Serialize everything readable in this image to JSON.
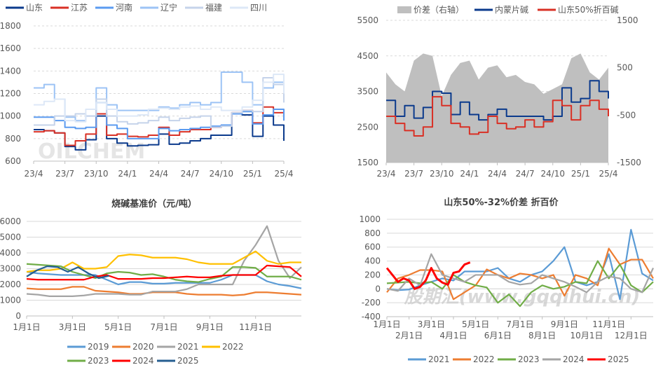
{
  "chart_data": [
    {
      "id": "c1",
      "type": "line",
      "title": "",
      "categories": [
        "23/4",
        "23/5",
        "23/6",
        "23/7",
        "23/8",
        "23/9",
        "23/10",
        "23/11",
        "23/12",
        "24/1",
        "24/2",
        "24/3",
        "24/4",
        "24/5",
        "24/6",
        "24/7",
        "24/8",
        "24/9",
        "24/10",
        "24/11",
        "24/12",
        "25/1",
        "25/2",
        "25/3",
        "25/4"
      ],
      "xtick_labels": [
        "23/4",
        "23/7",
        "23/10",
        "24/1",
        "24/4",
        "24/7",
        "24/10",
        "25/1",
        "25/4"
      ],
      "ylim": [
        600,
        1800
      ],
      "yticks": [
        "600",
        "800",
        "1000",
        "1200",
        "1400",
        "1600",
        "1800"
      ],
      "grid": true,
      "legend": "top",
      "watermark": "OILCHEM",
      "series": [
        {
          "name": "山东",
          "color": "#0b3a8c",
          "values": [
            880,
            870,
            850,
            730,
            700,
            790,
            1000,
            800,
            760,
            735,
            740,
            745,
            840,
            750,
            760,
            780,
            800,
            830,
            830,
            1020,
            1010,
            820,
            1000,
            920,
            780
          ]
        },
        {
          "name": "江苏",
          "color": "#d93025",
          "values": [
            860,
            870,
            850,
            740,
            780,
            840,
            1020,
            830,
            840,
            820,
            815,
            830,
            900,
            830,
            860,
            880,
            880,
            900,
            920,
            1030,
            1050,
            940,
            1080,
            1030,
            960
          ]
        },
        {
          "name": "河南",
          "color": "#5b9bf0",
          "values": [
            990,
            990,
            960,
            900,
            890,
            900,
            1120,
            920,
            890,
            800,
            800,
            800,
            890,
            870,
            880,
            890,
            900,
            910,
            920,
            1020,
            1040,
            930,
            1010,
            1060,
            960
          ]
        },
        {
          "name": "辽宁",
          "color": "#9cc3f5",
          "values": [
            1250,
            1280,
            1150,
            990,
            960,
            1000,
            1250,
            1100,
            1050,
            1050,
            1050,
            1050,
            1080,
            1070,
            1100,
            1120,
            1100,
            1120,
            1390,
            1390,
            1300,
            1100,
            1250,
            1300,
            1200
          ]
        },
        {
          "name": "福建",
          "color": "#c5d3ea",
          "values": [
            920,
            920,
            1000,
            1000,
            1020,
            1000,
            1150,
            1000,
            950,
            930,
            940,
            960,
            990,
            960,
            980,
            990,
            1000,
            900,
            910,
            1030,
            1050,
            1040,
            1340,
            1280,
            1120
          ]
        },
        {
          "name": "四川",
          "color": "#dde8f7",
          "values": [
            1100,
            1130,
            1150,
            960,
            950,
            1060,
            1120,
            1060,
            1000,
            1000,
            1010,
            1060,
            1070,
            1060,
            1080,
            1090,
            1060,
            1080,
            1050,
            1050,
            1080,
            1140,
            1300,
            1370,
            1200
          ]
        }
      ]
    },
    {
      "id": "c2",
      "type": "line",
      "title": "",
      "categories": [
        "23/4",
        "23/5",
        "23/6",
        "23/7",
        "23/8",
        "23/9",
        "23/10",
        "23/11",
        "23/12",
        "24/1",
        "24/2",
        "24/3",
        "24/4",
        "24/5",
        "24/6",
        "24/7",
        "24/8",
        "24/9",
        "24/10",
        "24/11",
        "24/12",
        "25/1",
        "25/2",
        "25/3",
        "25/4"
      ],
      "xtick_labels": [
        "23/4",
        "23/7",
        "23/10",
        "24/1",
        "24/4",
        "24/7",
        "24/10",
        "25/1",
        "25/4"
      ],
      "ylim": [
        1500,
        5500
      ],
      "yticks": [
        "1500",
        "2500",
        "3500",
        "4500",
        "5500"
      ],
      "ylim_right": [
        -1500,
        1500
      ],
      "yticks_right": [
        "-1500",
        "-500",
        "500",
        "1500"
      ],
      "legend": "top",
      "watermark": "OILCHEM",
      "area_series": {
        "name": "价差（右轴）",
        "color": "#bfbfbf",
        "axis": "right",
        "values": [
          400,
          150,
          0,
          650,
          800,
          750,
          -100,
          350,
          600,
          650,
          250,
          500,
          550,
          300,
          350,
          200,
          150,
          -50,
          50,
          150,
          700,
          800,
          400,
          250,
          500
        ]
      },
      "series": [
        {
          "name": "内蒙片碱",
          "color": "#0b3a8c",
          "values": [
            3250,
            2800,
            3100,
            2750,
            3050,
            3500,
            3450,
            2850,
            3200,
            2850,
            2700,
            2850,
            3000,
            2800,
            2800,
            2800,
            2800,
            2700,
            2800,
            3600,
            3200,
            3300,
            3800,
            3500,
            3300
          ]
        },
        {
          "name": "山东50%折百碱",
          "color": "#d93025",
          "values": [
            2800,
            2600,
            2400,
            2250,
            2500,
            3350,
            3100,
            2600,
            2500,
            2300,
            2350,
            2800,
            2600,
            2450,
            2500,
            2700,
            2500,
            2650,
            3250,
            3100,
            2700,
            3100,
            3250,
            3000,
            2800
          ]
        }
      ]
    },
    {
      "id": "c3",
      "type": "line",
      "title": "烧碱基准价（元/吨）",
      "xtick_labels": [
        "1月1日",
        "3月1日",
        "5月1日",
        "7月1日",
        "9月1日",
        "11月1日"
      ],
      "ylim": [
        0,
        6000
      ],
      "yticks": [
        "0",
        "1000",
        "2000",
        "3000",
        "4000",
        "5000",
        "6000"
      ],
      "legend": "bottom",
      "series": [
        {
          "name": "2019",
          "color": "#5b9bd5",
          "values": [
            2800,
            2700,
            2650,
            2600,
            2600,
            2600,
            2600,
            2300,
            2000,
            2150,
            2150,
            2050,
            2050,
            2100,
            2100,
            2100,
            2100,
            2300,
            2600,
            2600,
            2600,
            2200,
            2000,
            1900,
            1750
          ]
        },
        {
          "name": "2020",
          "color": "#ed7d31",
          "values": [
            1750,
            1700,
            1700,
            1700,
            1850,
            1850,
            1600,
            1550,
            1500,
            1400,
            1400,
            1500,
            1500,
            1500,
            1400,
            1350,
            1350,
            1350,
            1300,
            1350,
            1500,
            1500,
            1450,
            1400,
            1350
          ]
        },
        {
          "name": "2021",
          "color": "#a5a5a5",
          "values": [
            1400,
            1350,
            1250,
            1250,
            1250,
            1300,
            1400,
            1400,
            1400,
            1350,
            1350,
            1550,
            1550,
            1550,
            1700,
            2000,
            2000,
            2000,
            2000,
            3500,
            4500,
            5700,
            3500,
            2400,
            3100
          ]
        },
        {
          "name": "2022",
          "color": "#ffc000",
          "values": [
            2800,
            2900,
            2900,
            3000,
            3400,
            3000,
            3000,
            3100,
            3800,
            3900,
            3850,
            3700,
            3700,
            3700,
            3600,
            3400,
            3300,
            3300,
            3300,
            3700,
            4100,
            3500,
            3300,
            3400,
            3400
          ]
        },
        {
          "name": "2023",
          "color": "#70ad47",
          "values": [
            3300,
            3250,
            3200,
            3150,
            2800,
            2600,
            2400,
            2700,
            2800,
            2750,
            2600,
            2650,
            2500,
            2300,
            2200,
            2150,
            2350,
            2500,
            3100,
            3100,
            3050,
            2500,
            2500,
            2500,
            2300
          ]
        },
        {
          "name": "2024",
          "color": "#ff0000",
          "values": [
            2350,
            2300,
            2300,
            2300,
            2300,
            2300,
            2500,
            2600,
            2350,
            2350,
            2350,
            2400,
            2400,
            2450,
            2500,
            2450,
            2450,
            2550,
            2600,
            2600,
            2600,
            3200,
            3150,
            3100,
            2500
          ]
        },
        {
          "name": "2025",
          "color": "#255e91",
          "values": [
            2500,
            2900,
            3150,
            3100,
            2800,
            3100,
            2700,
            2400,
            2550
          ],
          "step": 0.9
        }
      ]
    },
    {
      "id": "c4",
      "type": "line",
      "title": "山东50%-32%价差 折百价",
      "xtick_labels": [
        "1月1日",
        "2月1日",
        "3月1日",
        "4月1日",
        "5月1日",
        "6月1日",
        "7月1日",
        "8月1日",
        "9月1日",
        "10月1日",
        "11月1日",
        "12月1日"
      ],
      "ylim": [
        -400,
        1000
      ],
      "yticks": [
        "-400",
        "-200",
        "0",
        "200",
        "400",
        "600",
        "800",
        "1000"
      ],
      "legend": "bottom",
      "watermark": "股期汇(www.gqqihui.cn)",
      "series": [
        {
          "name": "2021",
          "color": "#5b9bd5",
          "values": [
            0,
            -20,
            -10,
            50,
            100,
            150,
            120,
            250,
            250,
            250,
            300,
            150,
            100,
            200,
            250,
            400,
            600,
            100,
            50,
            100,
            500,
            -150,
            850,
            220,
            120
          ]
        },
        {
          "name": "2022",
          "color": "#ed7d31",
          "values": [
            -50,
            150,
            200,
            270,
            270,
            250,
            -150,
            -50,
            50,
            280,
            200,
            150,
            220,
            200,
            150,
            200,
            -100,
            200,
            150,
            50,
            580,
            350,
            420,
            420,
            150
          ]
        },
        {
          "name": "2023",
          "color": "#70ad47",
          "values": [
            80,
            90,
            100,
            80,
            100,
            0,
            200,
            100,
            50,
            20,
            -200,
            -80,
            -250,
            -50,
            50,
            0,
            30,
            100,
            80,
            400,
            150,
            350,
            50,
            -50,
            100
          ]
        },
        {
          "name": "2024",
          "color": "#a5a5a5",
          "values": [
            0,
            -30,
            150,
            50,
            500,
            200,
            150,
            100,
            200,
            200,
            200,
            100,
            60,
            80,
            200,
            150,
            100,
            30,
            -50,
            100,
            180,
            150,
            0,
            -50,
            300
          ]
        },
        {
          "name": "2025",
          "color": "#ff0000",
          "values": [
            300,
            200,
            100,
            150,
            120,
            0,
            30,
            120,
            300,
            150,
            90,
            60,
            230,
            250,
            350,
            380
          ],
          "step": 0.5
        }
      ]
    }
  ]
}
